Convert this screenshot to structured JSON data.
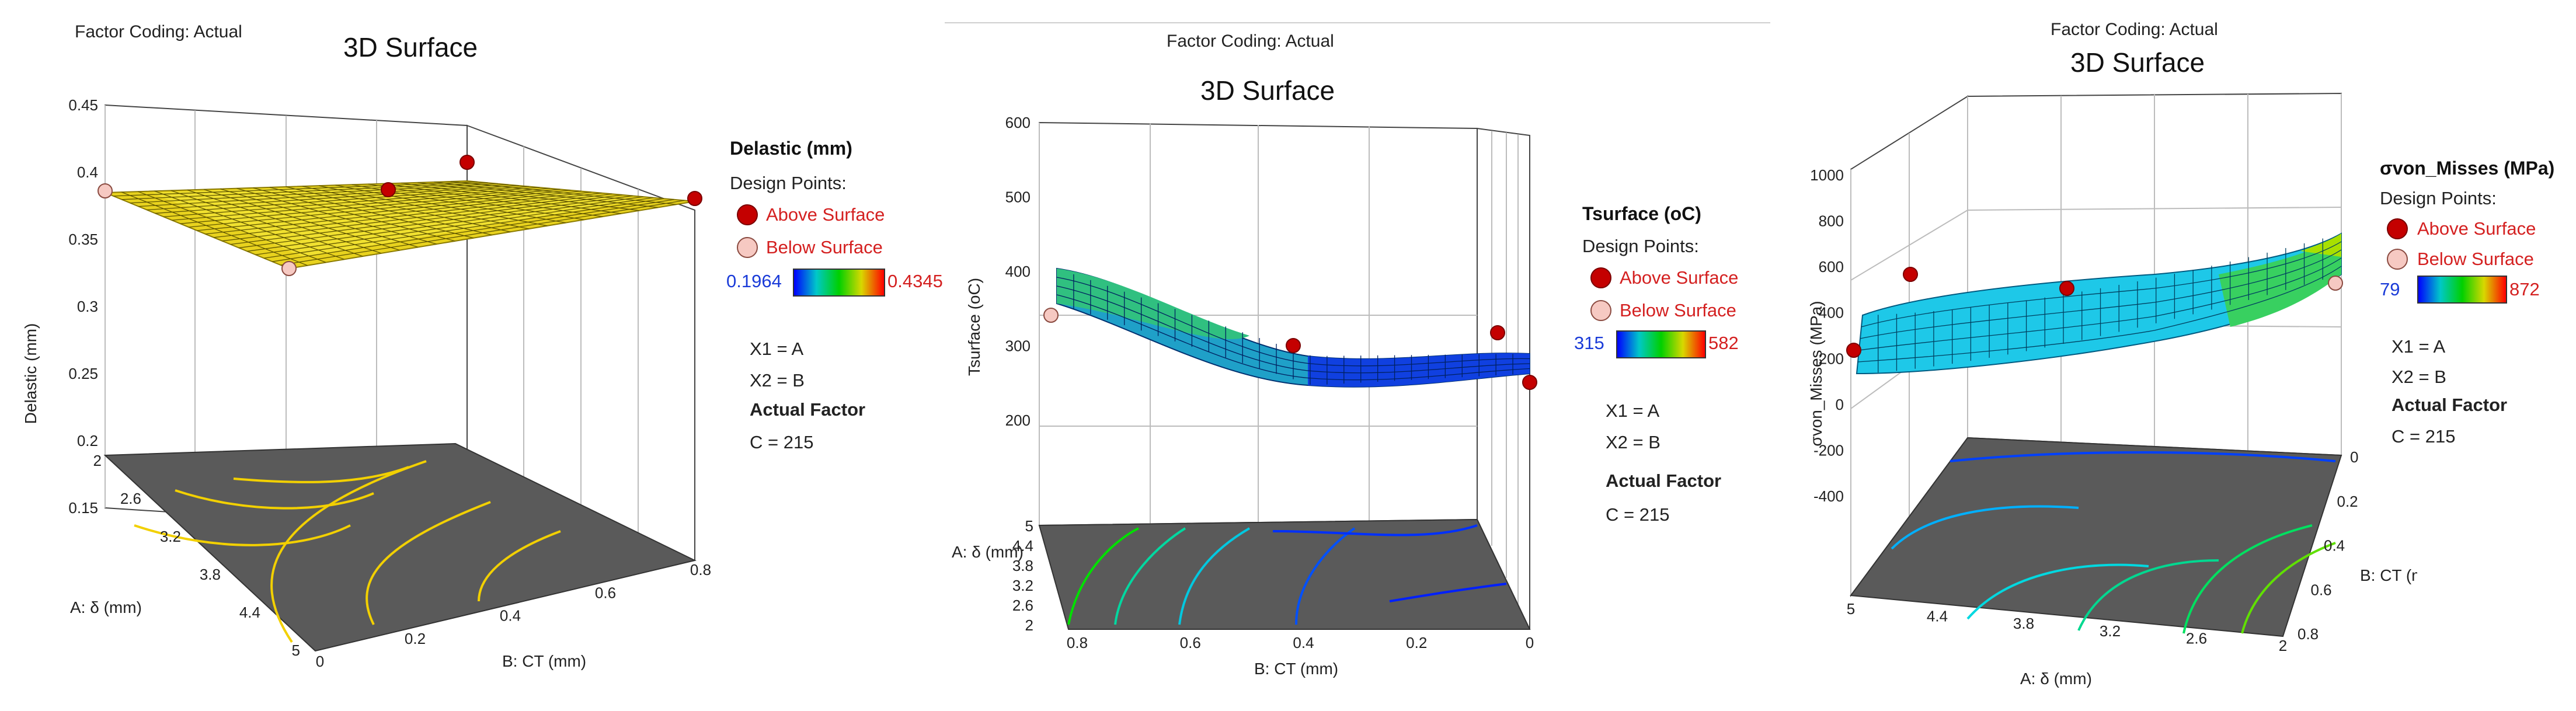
{
  "colors": {
    "surface_low": "#0000ff",
    "surface_mid": "#00d000",
    "surface_high": "#ff0000",
    "above_point": "#c40000",
    "below_point": "#f6c9c2",
    "floor": "#5a5a5a"
  },
  "common": {
    "factor_coding": "Factor Coding: Actual",
    "title": "3D Surface",
    "design_points": "Design Points:",
    "above_surface": "Above Surface",
    "below_surface": "Below Surface",
    "x1": "X1 = A",
    "x2": "X2 = B",
    "actual_factor": "Actual Factor",
    "c_value": "C = 215"
  },
  "panels": [
    {
      "legend_title": "Delastic (mm)",
      "min": "0.1964",
      "max": "0.4345"
    },
    {
      "legend_title": "Tsurface (oC)",
      "min": "315",
      "max": "582"
    },
    {
      "legend_title": "σvon_Misses  (MPa)",
      "min": "79",
      "max": "872"
    }
  ],
  "chart_data": [
    {
      "type": "surface3d",
      "title": "3D Surface",
      "zlabel": "Delastic (mm)",
      "xlabel": "B: CT (mm)",
      "ylabel": "A: δ (mm)",
      "z_ticks": [
        "0.15",
        "0.2",
        "0.25",
        "0.3",
        "0.35",
        "0.4",
        "0.45"
      ],
      "x_ticks": [
        "0",
        "0.2",
        "0.4",
        "0.6",
        "0.8"
      ],
      "y_ticks": [
        "2",
        "2.6",
        "3.2",
        "3.8",
        "4.4",
        "5"
      ],
      "zlim": [
        0.15,
        0.45
      ],
      "xlim": [
        0,
        0.8
      ],
      "ylim": [
        2,
        5
      ],
      "surface_color": "yellow",
      "design_points": [
        {
          "A": 2,
          "B": 0.8,
          "z": 0.389,
          "position": "above"
        },
        {
          "A": 3.5,
          "B": 0.4,
          "z": 0.37,
          "position": "above"
        },
        {
          "A": 5,
          "B": 0.8,
          "z": 0.355,
          "position": "above"
        },
        {
          "A": 2,
          "B": 0,
          "z": 0.36,
          "position": "below"
        },
        {
          "A": 5,
          "B": 0,
          "z": 0.305,
          "position": "below"
        }
      ]
    },
    {
      "type": "surface3d",
      "title": "3D Surface",
      "zlabel": "Tsurface (oC)",
      "xlabel": "B: CT (mm)",
      "ylabel": "A: δ (mm)",
      "z_ticks": [
        "200",
        "300",
        "400",
        "500",
        "600"
      ],
      "x_ticks": [
        "0.8",
        "0.6",
        "0.4",
        "0.2",
        "0"
      ],
      "y_ticks": [
        "2",
        "2.6",
        "3.2",
        "3.8",
        "4.4",
        "5"
      ],
      "zlim": [
        200,
        600
      ],
      "xlim": [
        0,
        0.8
      ],
      "ylim": [
        2,
        5
      ],
      "surface_color": "blue-green",
      "design_points": [
        {
          "A": 5,
          "B": 0.8,
          "z": 340,
          "position": "below"
        },
        {
          "A": 3.5,
          "B": 0.4,
          "z": 320,
          "position": "above"
        },
        {
          "A": 5,
          "B": 0.1,
          "z": 340,
          "position": "above"
        },
        {
          "A": 2,
          "B": 0,
          "z": 300,
          "position": "above"
        }
      ]
    },
    {
      "type": "surface3d",
      "title": "3D Surface",
      "zlabel": "σvon_Misses  (MPa)",
      "xlabel": "A: δ (mm)",
      "ylabel": "B: CT (mm)",
      "z_ticks": [
        "-400",
        "-200",
        "0",
        "200",
        "400",
        "600",
        "800",
        "1000"
      ],
      "x_ticks": [
        "5",
        "4.4",
        "3.8",
        "3.2",
        "2.6",
        "2"
      ],
      "y_ticks": [
        "0",
        "0.2",
        "0.4",
        "0.6",
        "0.8"
      ],
      "zlim": [
        -400,
        1000
      ],
      "xlim": [
        2,
        5
      ],
      "ylim": [
        0,
        0.8
      ],
      "surface_color": "blue-cyan-green",
      "design_points": [
        {
          "A": 5,
          "B": 0.8,
          "z": 200,
          "position": "above"
        },
        {
          "A": 4.4,
          "B": 0.2,
          "z": 540,
          "position": "above"
        },
        {
          "A": 3.2,
          "B": 0.4,
          "z": 500,
          "position": "above"
        },
        {
          "A": 2,
          "B": 0.8,
          "z": 600,
          "position": "below"
        }
      ]
    }
  ]
}
